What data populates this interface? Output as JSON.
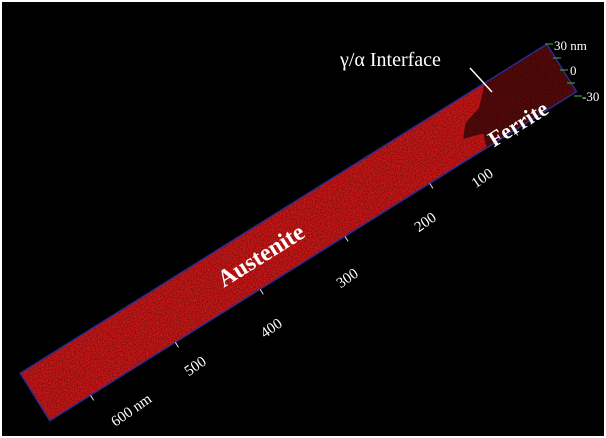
{
  "labels": {
    "interface": "γ/α Interface",
    "austenite": "Austenite",
    "ferrite": "Ferrite"
  },
  "length_scale": [
    "100",
    "200",
    "300",
    "400",
    "500",
    "600 nm"
  ],
  "width_scale": [
    "30 nm",
    "0",
    "-30"
  ]
}
